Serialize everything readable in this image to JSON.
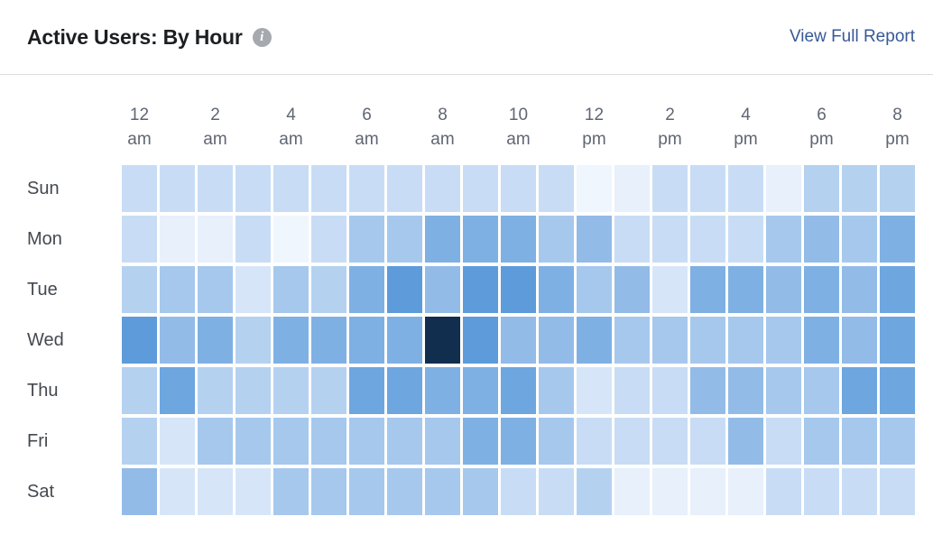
{
  "header": {
    "title": "Active Users: By Hour",
    "info_icon": "info-icon",
    "report_link_label": "View Full Report"
  },
  "colors": {
    "title_text": "#1c1e21",
    "link_text": "#385898",
    "axis_text": "#5f6673",
    "row_label_text": "#444950",
    "divider": "#dcdee2",
    "info_icon_bg": "#a6a9ad",
    "peak_cell": "#112e4f"
  },
  "chart_data": {
    "type": "heatmap",
    "title": "Active Users: By Hour",
    "rows": [
      "Sun",
      "Mon",
      "Tue",
      "Wed",
      "Thu",
      "Fri",
      "Sat"
    ],
    "columns": [
      "12 am",
      "1 am",
      "2 am",
      "3 am",
      "4 am",
      "5 am",
      "6 am",
      "7 am",
      "8 am",
      "9 am",
      "10 am",
      "11 am",
      "12 pm",
      "1 pm",
      "2 pm",
      "3 pm",
      "4 pm",
      "5 pm",
      "6 pm",
      "7 pm",
      "8 pm"
    ],
    "ticks": [
      {
        "col": 0,
        "line1": "12",
        "line2": "am"
      },
      {
        "col": 2,
        "line1": "2",
        "line2": "am"
      },
      {
        "col": 4,
        "line1": "4",
        "line2": "am"
      },
      {
        "col": 6,
        "line1": "6",
        "line2": "am"
      },
      {
        "col": 8,
        "line1": "8",
        "line2": "am"
      },
      {
        "col": 10,
        "line1": "10",
        "line2": "am"
      },
      {
        "col": 12,
        "line1": "12",
        "line2": "pm"
      },
      {
        "col": 14,
        "line1": "2",
        "line2": "pm"
      },
      {
        "col": 16,
        "line1": "4",
        "line2": "pm"
      },
      {
        "col": 18,
        "line1": "6",
        "line2": "pm"
      },
      {
        "col": 20,
        "line1": "8",
        "line2": "pm"
      }
    ],
    "values": [
      [
        3,
        3,
        3,
        3,
        3,
        3,
        3,
        3,
        3,
        3,
        3,
        3,
        0,
        1,
        3,
        3,
        3,
        1,
        4,
        4,
        4
      ],
      [
        3,
        1,
        1,
        3,
        0,
        3,
        5,
        5,
        7,
        7,
        7,
        5,
        6,
        3,
        3,
        3,
        3,
        5,
        6,
        5,
        7
      ],
      [
        4,
        5,
        5,
        2,
        5,
        4,
        7,
        9,
        6,
        9,
        9,
        7,
        5,
        6,
        2,
        7,
        7,
        6,
        7,
        6,
        8
      ],
      [
        9,
        6,
        7,
        4,
        7,
        7,
        7,
        7,
        10,
        9,
        6,
        6,
        7,
        5,
        5,
        5,
        5,
        5,
        7,
        6,
        8
      ],
      [
        4,
        8,
        4,
        4,
        4,
        4,
        8,
        8,
        7,
        7,
        8,
        5,
        2,
        3,
        3,
        6,
        6,
        5,
        5,
        8,
        8
      ],
      [
        4,
        2,
        5,
        5,
        5,
        5,
        5,
        5,
        5,
        7,
        7,
        5,
        3,
        3,
        3,
        3,
        6,
        3,
        5,
        5,
        5
      ],
      [
        6,
        2,
        2,
        2,
        5,
        5,
        5,
        5,
        5,
        5,
        3,
        3,
        4,
        1,
        1,
        1,
        1,
        3,
        3,
        3,
        3
      ]
    ],
    "scale": {
      "min": 0,
      "max": 10,
      "palette": [
        "#f0f6fd",
        "#e7f0fb",
        "#d6e6f8",
        "#c8ddf5",
        "#b5d1f0",
        "#a6c8ed",
        "#93bbe8",
        "#7fb0e4",
        "#6ea6e0",
        "#5e9bdb",
        "#112e4f"
      ]
    },
    "legend": "none",
    "grid_gap_color": "#ffffff"
  }
}
